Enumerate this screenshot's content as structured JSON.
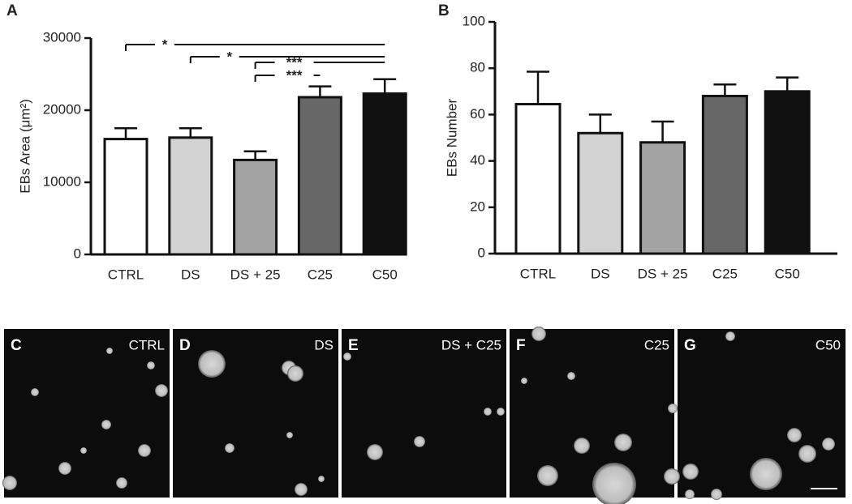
{
  "chart_data": [
    {
      "type": "bar",
      "panel": "A",
      "y_label": "EBs Area (μm²)",
      "categories": [
        "CTRL",
        "DS",
        "DS + 25",
        "C25",
        "C50"
      ],
      "values": [
        16000,
        16200,
        13100,
        21800,
        22300
      ],
      "errors": [
        1500,
        1300,
        1200,
        1500,
        2000
      ],
      "colors": [
        "#ffffff",
        "#d2d2d2",
        "#a3a3a3",
        "#676767",
        "#111111"
      ],
      "ylim": [
        0,
        30000
      ],
      "yticks": [
        0,
        10000,
        20000,
        30000
      ],
      "annotations": [
        {
          "label": "*",
          "span": [
            "CTRL",
            "C50"
          ]
        },
        {
          "label": "*",
          "span": [
            "DS",
            "C50"
          ]
        },
        {
          "label": "***",
          "span": [
            "DS + 25",
            "C50"
          ]
        },
        {
          "label": "***",
          "span": [
            "DS + 25",
            "C25"
          ]
        }
      ]
    },
    {
      "type": "bar",
      "panel": "B",
      "y_label": "EBs Number",
      "categories": [
        "CTRL",
        "DS",
        "DS + 25",
        "C25",
        "C50"
      ],
      "values": [
        64.5,
        52,
        48,
        68,
        70
      ],
      "errors": [
        14,
        8,
        9,
        5,
        6
      ],
      "colors": [
        "#ffffff",
        "#d2d2d2",
        "#a3a3a3",
        "#676767",
        "#111111"
      ],
      "ylim": [
        0,
        100
      ],
      "yticks": [
        0,
        20,
        40,
        60,
        80,
        100
      ]
    }
  ],
  "image_panels": [
    {
      "letter": "C",
      "label": "CTRL"
    },
    {
      "letter": "D",
      "label": "DS"
    },
    {
      "letter": "E",
      "label": "DS + C25"
    },
    {
      "letter": "F",
      "label": "C25"
    },
    {
      "letter": "G",
      "label": "C50"
    }
  ]
}
